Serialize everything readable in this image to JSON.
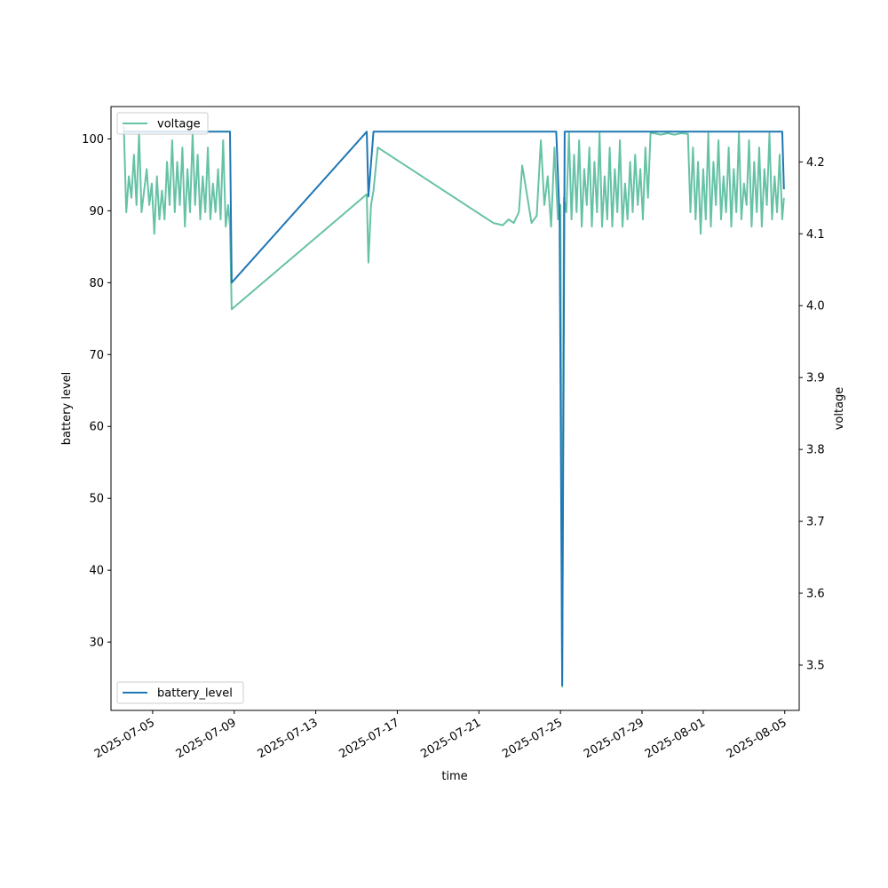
{
  "chart_data": {
    "type": "line",
    "xlabel": "time",
    "ylabel_left": "battery level",
    "ylabel_right": "voltage",
    "x_ticks": [
      "2025-07-05",
      "2025-07-09",
      "2025-07-13",
      "2025-07-17",
      "2025-07-21",
      "2025-07-25",
      "2025-07-29",
      "2025-08-01",
      "2025-08-05"
    ],
    "x_range": [
      "2025-07-02T23:00",
      "2025-08-05T17:00"
    ],
    "y_left_ticks": [
      30,
      40,
      50,
      60,
      70,
      80,
      90,
      100
    ],
    "y_left_range": [
      20.5,
      104.5
    ],
    "y_right_ticks": [
      3.5,
      3.6,
      3.7,
      3.8,
      3.9,
      4.0,
      4.1,
      4.2
    ],
    "y_right_range": [
      3.437,
      4.277
    ],
    "grid": false,
    "legend_left": {
      "placement": "lower-left",
      "label": "battery_level"
    },
    "legend_right": {
      "placement": "upper-left",
      "label": "voltage"
    },
    "series": [
      {
        "name": "battery_level",
        "axis": "left",
        "color": "#1f77b4",
        "points": [
          [
            "2025-07-03T14:00",
            101
          ],
          [
            "2025-07-08T19:00",
            101
          ],
          [
            "2025-07-08T21:00",
            80
          ],
          [
            "2025-07-15T12:00",
            101
          ],
          [
            "2025-07-15T14:00",
            92
          ],
          [
            "2025-07-15T20:00",
            101
          ],
          [
            "2025-07-24T19:00",
            101
          ],
          [
            "2025-07-24T23:00",
            89
          ],
          [
            "2025-07-25T02:00",
            24
          ],
          [
            "2025-07-25T05:00",
            101
          ],
          [
            "2025-08-04T21:00",
            101
          ],
          [
            "2025-08-04T23:00",
            93
          ]
        ]
      },
      {
        "name": "voltage",
        "axis": "right",
        "color": "#66c2a5",
        "points": [
          [
            "2025-07-03T14:00",
            4.25
          ],
          [
            "2025-07-03T17:00",
            4.13
          ],
          [
            "2025-07-03T20:00",
            4.18
          ],
          [
            "2025-07-03T23:00",
            4.15
          ],
          [
            "2025-07-04T02:00",
            4.21
          ],
          [
            "2025-07-04T05:00",
            4.14
          ],
          [
            "2025-07-04T08:00",
            4.24
          ],
          [
            "2025-07-04T11:00",
            4.13
          ],
          [
            "2025-07-04T14:00",
            4.16
          ],
          [
            "2025-07-04T17:00",
            4.19
          ],
          [
            "2025-07-04T20:00",
            4.14
          ],
          [
            "2025-07-04T23:00",
            4.17
          ],
          [
            "2025-07-05T02:00",
            4.1
          ],
          [
            "2025-07-05T05:00",
            4.18
          ],
          [
            "2025-07-05T08:00",
            4.12
          ],
          [
            "2025-07-05T11:00",
            4.16
          ],
          [
            "2025-07-05T14:00",
            4.12
          ],
          [
            "2025-07-05T17:00",
            4.2
          ],
          [
            "2025-07-05T20:00",
            4.14
          ],
          [
            "2025-07-05T23:00",
            4.23
          ],
          [
            "2025-07-06T02:00",
            4.13
          ],
          [
            "2025-07-06T05:00",
            4.2
          ],
          [
            "2025-07-06T08:00",
            4.14
          ],
          [
            "2025-07-06T11:00",
            4.22
          ],
          [
            "2025-07-06T14:00",
            4.11
          ],
          [
            "2025-07-06T17:00",
            4.19
          ],
          [
            "2025-07-06T20:00",
            4.13
          ],
          [
            "2025-07-06T23:00",
            4.24
          ],
          [
            "2025-07-07T02:00",
            4.14
          ],
          [
            "2025-07-07T05:00",
            4.21
          ],
          [
            "2025-07-07T08:00",
            4.12
          ],
          [
            "2025-07-07T11:00",
            4.18
          ],
          [
            "2025-07-07T14:00",
            4.13
          ],
          [
            "2025-07-07T17:00",
            4.22
          ],
          [
            "2025-07-07T20:00",
            4.12
          ],
          [
            "2025-07-07T23:00",
            4.17
          ],
          [
            "2025-07-08T02:00",
            4.13
          ],
          [
            "2025-07-08T05:00",
            4.19
          ],
          [
            "2025-07-08T08:00",
            4.12
          ],
          [
            "2025-07-08T11:00",
            4.23
          ],
          [
            "2025-07-08T14:00",
            4.11
          ],
          [
            "2025-07-08T17:00",
            4.14
          ],
          [
            "2025-07-08T19:00",
            4.11
          ],
          [
            "2025-07-08T21:00",
            3.995
          ],
          [
            "2025-07-15T12:00",
            4.155
          ],
          [
            "2025-07-15T14:00",
            4.06
          ],
          [
            "2025-07-15T17:00",
            4.14
          ],
          [
            "2025-07-15T20:00",
            4.16
          ],
          [
            "2025-07-16T01:00",
            4.22
          ],
          [
            "2025-07-21T17:00",
            4.115
          ],
          [
            "2025-07-22T04:00",
            4.112
          ],
          [
            "2025-07-22T11:00",
            4.12
          ],
          [
            "2025-07-22T17:00",
            4.115
          ],
          [
            "2025-07-22T23:00",
            4.13
          ],
          [
            "2025-07-23T03:00",
            4.195
          ],
          [
            "2025-07-23T14:00",
            4.115
          ],
          [
            "2025-07-23T20:00",
            4.125
          ],
          [
            "2025-07-24T01:00",
            4.23
          ],
          [
            "2025-07-24T05:00",
            4.14
          ],
          [
            "2025-07-24T09:00",
            4.18
          ],
          [
            "2025-07-24T13:00",
            4.11
          ],
          [
            "2025-07-24T17:00",
            4.22
          ],
          [
            "2025-07-24T21:00",
            4.12
          ],
          [
            "2025-07-25T00:00",
            4.14
          ],
          [
            "2025-07-25T02:00",
            3.47
          ],
          [
            "2025-07-25T04:00",
            4.15
          ],
          [
            "2025-07-25T07:00",
            4.13
          ],
          [
            "2025-07-25T10:00",
            4.24
          ],
          [
            "2025-07-25T13:00",
            4.12
          ],
          [
            "2025-07-25T16:00",
            4.21
          ],
          [
            "2025-07-25T19:00",
            4.13
          ],
          [
            "2025-07-25T22:00",
            4.23
          ],
          [
            "2025-07-26T01:00",
            4.11
          ],
          [
            "2025-07-26T04:00",
            4.19
          ],
          [
            "2025-07-26T07:00",
            4.14
          ],
          [
            "2025-07-26T10:00",
            4.22
          ],
          [
            "2025-07-26T13:00",
            4.11
          ],
          [
            "2025-07-26T16:00",
            4.2
          ],
          [
            "2025-07-26T19:00",
            4.13
          ],
          [
            "2025-07-26T22:00",
            4.24
          ],
          [
            "2025-07-27T01:00",
            4.11
          ],
          [
            "2025-07-27T04:00",
            4.18
          ],
          [
            "2025-07-27T07:00",
            4.12
          ],
          [
            "2025-07-27T10:00",
            4.22
          ],
          [
            "2025-07-27T13:00",
            4.11
          ],
          [
            "2025-07-27T16:00",
            4.19
          ],
          [
            "2025-07-27T19:00",
            4.13
          ],
          [
            "2025-07-27T22:00",
            4.23
          ],
          [
            "2025-07-28T01:00",
            4.11
          ],
          [
            "2025-07-28T04:00",
            4.17
          ],
          [
            "2025-07-28T07:00",
            4.12
          ],
          [
            "2025-07-28T10:00",
            4.2
          ],
          [
            "2025-07-28T13:00",
            4.13
          ],
          [
            "2025-07-28T16:00",
            4.21
          ],
          [
            "2025-07-28T19:00",
            4.14
          ],
          [
            "2025-07-28T22:00",
            4.19
          ],
          [
            "2025-07-29T01:00",
            4.12
          ],
          [
            "2025-07-29T04:00",
            4.22
          ],
          [
            "2025-07-29T07:00",
            4.15
          ],
          [
            "2025-07-29T10:00",
            4.24
          ],
          [
            "2025-07-29T14:00",
            4.24
          ],
          [
            "2025-07-29T22:00",
            4.238
          ],
          [
            "2025-07-30T06:00",
            4.24
          ],
          [
            "2025-07-30T14:00",
            4.238
          ],
          [
            "2025-07-30T22:00",
            4.24
          ],
          [
            "2025-07-31T06:00",
            4.239
          ],
          [
            "2025-07-31T09:00",
            4.13
          ],
          [
            "2025-07-31T12:00",
            4.22
          ],
          [
            "2025-07-31T15:00",
            4.12
          ],
          [
            "2025-07-31T18:00",
            4.2
          ],
          [
            "2025-07-31T21:00",
            4.1
          ],
          [
            "2025-08-01T00:00",
            4.19
          ],
          [
            "2025-08-01T03:00",
            4.12
          ],
          [
            "2025-08-01T06:00",
            4.24
          ],
          [
            "2025-08-01T09:00",
            4.11
          ],
          [
            "2025-08-01T12:00",
            4.2
          ],
          [
            "2025-08-01T15:00",
            4.14
          ],
          [
            "2025-08-01T18:00",
            4.23
          ],
          [
            "2025-08-01T21:00",
            4.12
          ],
          [
            "2025-08-02T00:00",
            4.18
          ],
          [
            "2025-08-02T03:00",
            4.13
          ],
          [
            "2025-08-02T06:00",
            4.22
          ],
          [
            "2025-08-02T09:00",
            4.11
          ],
          [
            "2025-08-02T12:00",
            4.19
          ],
          [
            "2025-08-02T15:00",
            4.13
          ],
          [
            "2025-08-02T18:00",
            4.24
          ],
          [
            "2025-08-02T21:00",
            4.12
          ],
          [
            "2025-08-03T00:00",
            4.17
          ],
          [
            "2025-08-03T03:00",
            4.14
          ],
          [
            "2025-08-03T06:00",
            4.23
          ],
          [
            "2025-08-03T09:00",
            4.11
          ],
          [
            "2025-08-03T12:00",
            4.2
          ],
          [
            "2025-08-03T15:00",
            4.13
          ],
          [
            "2025-08-03T18:00",
            4.22
          ],
          [
            "2025-08-03T21:00",
            4.11
          ],
          [
            "2025-08-04T00:00",
            4.19
          ],
          [
            "2025-08-04T03:00",
            4.14
          ],
          [
            "2025-08-04T06:00",
            4.24
          ],
          [
            "2025-08-04T09:00",
            4.12
          ],
          [
            "2025-08-04T12:00",
            4.18
          ],
          [
            "2025-08-04T15:00",
            4.13
          ],
          [
            "2025-08-04T18:00",
            4.21
          ],
          [
            "2025-08-04T21:00",
            4.12
          ],
          [
            "2025-08-04T23:00",
            4.15
          ]
        ]
      }
    ]
  }
}
